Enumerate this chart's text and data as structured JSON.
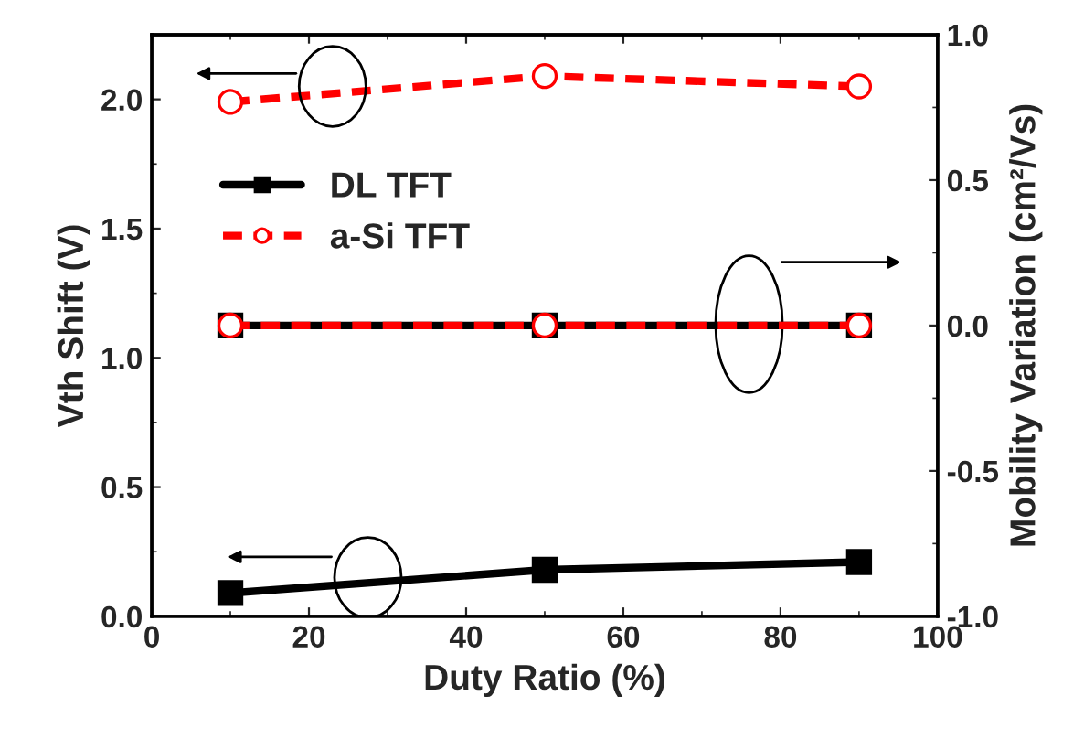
{
  "chart_data": {
    "type": "line",
    "xlabel": "Duty Ratio (%)",
    "ylabel": "Vth Shift (V)",
    "y2label": "Mobility Variation (cm²/Vs)",
    "x": [
      10,
      50,
      90
    ],
    "series": [
      {
        "name": "DL TFT",
        "color": "#000000",
        "values": [
          0.09,
          0.18,
          0.21
        ],
        "marker": "square",
        "line_style": "solid"
      },
      {
        "name": "a-Si TFT",
        "color": "#ff0000",
        "values": [
          1.99,
          2.09,
          2.05
        ],
        "marker": "circle",
        "line_style": "dashed"
      },
      {
        "color": "#000000",
        "values": [
          0.0,
          0.0,
          0.0
        ],
        "axis": "y2",
        "marker": "square",
        "line_style": "solid"
      },
      {
        "color": "#ff0000",
        "values": [
          0.0,
          0.0,
          0.0
        ],
        "axis": "y2",
        "marker": "circle",
        "line_style": "dashed"
      }
    ],
    "xlim": [
      0,
      100
    ],
    "xticks": [
      0,
      20,
      40,
      60,
      80,
      100
    ],
    "ylim": [
      0,
      2.25
    ],
    "yticks": [
      {
        "value": 0,
        "label": "0.0"
      },
      {
        "value": 0.5,
        "label": "0.5"
      },
      {
        "value": 1,
        "label": "1.0"
      },
      {
        "value": 1.5,
        "label": "1.5"
      },
      {
        "value": 2,
        "label": "2.0"
      }
    ],
    "y2lim": [
      -1,
      1
    ],
    "y2ticks": [
      {
        "value": -1,
        "label": "-1.0"
      },
      {
        "value": -0.5,
        "label": "-0.5"
      },
      {
        "value": 0,
        "label": "0.0"
      },
      {
        "value": 0.5,
        "label": "0.5"
      },
      {
        "value": 1,
        "label": "1.0"
      }
    ],
    "grid": false,
    "legend": "top left"
  }
}
